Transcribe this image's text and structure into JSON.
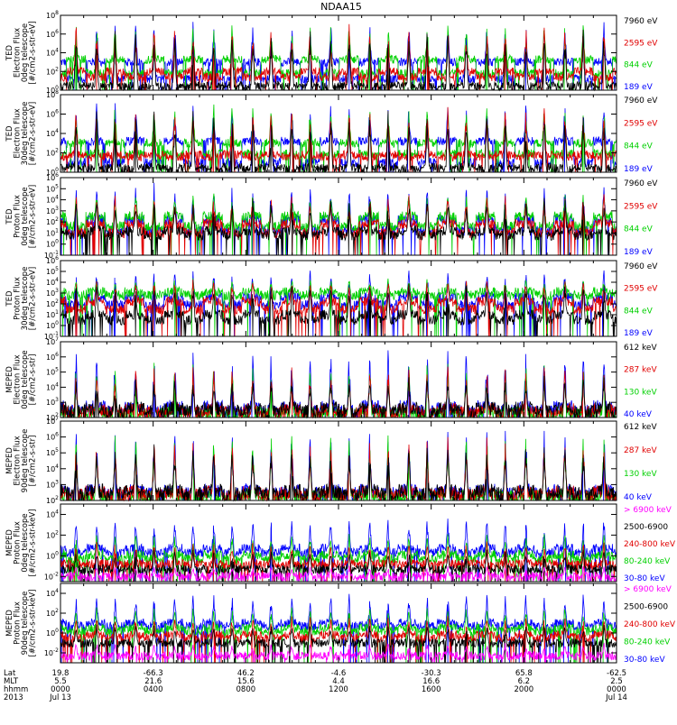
{
  "title": "NDAA15",
  "chart_data": {
    "type": "line",
    "title": "NDAA15",
    "panels": [
      {
        "id": "ted-e-0",
        "ylabel": [
          "TED",
          "Electron Flux",
          "0deg telescope",
          "[#/cm2-s-str-eV]"
        ],
        "ylog": [
          0,
          8
        ],
        "yticks": [
          {
            "label": "10^0",
            "exp": 0
          },
          {
            "label": "10^2",
            "exp": 2
          },
          {
            "label": "10^4",
            "exp": 4
          },
          {
            "label": "10^6",
            "exp": 6
          },
          {
            "label": "10^8",
            "exp": 8
          }
        ],
        "legend": [
          {
            "label": "7960 eV",
            "color": "#000000"
          },
          {
            "label": "2595 eV",
            "color": "#e00000"
          },
          {
            "label": "844 eV",
            "color": "#00d000"
          },
          {
            "label": "189 eV",
            "color": "#0000ff"
          }
        ],
        "base": [
          [
            0.5,
            2.0,
            3.3,
            1.2
          ],
          [
            0.4,
            1.4,
            1.8,
            3.0
          ]
        ],
        "peak": [
          6.2,
          6.8,
          6.9,
          7.2
        ]
      },
      {
        "id": "ted-e-30",
        "ylabel": [
          "TED",
          "Electron Flux",
          "30deg telescope",
          "[#/cm2-s-str-eV]"
        ],
        "ylog": [
          0,
          8
        ],
        "yticks": [
          {
            "label": "10^0",
            "exp": 0
          },
          {
            "label": "10^2",
            "exp": 2
          },
          {
            "label": "10^4",
            "exp": 4
          },
          {
            "label": "10^6",
            "exp": 6
          },
          {
            "label": "10^8",
            "exp": 8
          }
        ],
        "legend": [
          {
            "label": "7960 eV",
            "color": "#000000"
          },
          {
            "label": "2595 eV",
            "color": "#e00000"
          },
          {
            "label": "844 eV",
            "color": "#00d000"
          },
          {
            "label": "189 eV",
            "color": "#0000ff"
          }
        ],
        "base": [
          [
            0.5,
            1.8,
            3.0,
            1.0
          ],
          [
            0.4,
            1.6,
            1.9,
            3.2
          ]
        ],
        "peak": [
          6.0,
          6.5,
          6.8,
          7.0
        ]
      },
      {
        "id": "ted-p-0",
        "ylabel": [
          "TED",
          "Proton Flux",
          "0deg telescope",
          "[#/cm2-s-str-eV]"
        ],
        "ylog": [
          -1,
          6
        ],
        "yticks": [
          {
            "label": "10^-1",
            "exp": -1
          },
          {
            "label": "10^0",
            "exp": 0
          },
          {
            "label": "10^1",
            "exp": 1
          },
          {
            "label": "10^2",
            "exp": 2
          },
          {
            "label": "10^3",
            "exp": 3
          },
          {
            "label": "10^4",
            "exp": 4
          },
          {
            "label": "10^5",
            "exp": 5
          },
          {
            "label": "10^6",
            "exp": 6
          }
        ],
        "legend": [
          {
            "label": "7960 eV",
            "color": "#000000"
          },
          {
            "label": "2595 eV",
            "color": "#e00000"
          },
          {
            "label": "844 eV",
            "color": "#00d000"
          },
          {
            "label": "189 eV",
            "color": "#0000ff"
          }
        ],
        "base": [
          [
            0.8,
            1.0,
            1.6,
            1.2
          ],
          [
            1.2,
            1.8,
            2.5,
            2.2
          ]
        ],
        "peak": [
          4.0,
          4.5,
          4.6,
          5.3
        ]
      },
      {
        "id": "ted-p-30",
        "ylabel": [
          "TED",
          "Proton Flux",
          "30deg telescope",
          "[#/cm2-s-str-eV]"
        ],
        "ylog": [
          -1,
          6
        ],
        "yticks": [
          {
            "label": "10^-1",
            "exp": -1
          },
          {
            "label": "10^0",
            "exp": 0
          },
          {
            "label": "10^1",
            "exp": 1
          },
          {
            "label": "10^2",
            "exp": 2
          },
          {
            "label": "10^3",
            "exp": 3
          },
          {
            "label": "10^4",
            "exp": 4
          },
          {
            "label": "10^5",
            "exp": 5
          },
          {
            "label": "10^6",
            "exp": 6
          }
        ],
        "legend": [
          {
            "label": "7960 eV",
            "color": "#000000"
          },
          {
            "label": "2595 eV",
            "color": "#e00000"
          },
          {
            "label": "844 eV",
            "color": "#00d000"
          },
          {
            "label": "189 eV",
            "color": "#0000ff"
          }
        ],
        "base": [
          [
            0.5,
            1.5,
            2.8,
            1.9
          ],
          [
            1.0,
            2.2,
            3.1,
            2.6
          ]
        ],
        "peak": [
          3.8,
          4.2,
          4.3,
          5.0
        ]
      },
      {
        "id": "meped-e-0",
        "ylabel": [
          "MEPED",
          "Electron Flux",
          "0deg telescope",
          "[#/cm2-s-str]"
        ],
        "ylog": [
          2,
          7
        ],
        "yticks": [
          {
            "label": "10^2",
            "exp": 2
          },
          {
            "label": "10^3",
            "exp": 3
          },
          {
            "label": "10^4",
            "exp": 4
          },
          {
            "label": "10^5",
            "exp": 5
          },
          {
            "label": "10^6",
            "exp": 6
          },
          {
            "label": "10^7",
            "exp": 7
          }
        ],
        "legend": [
          {
            "label": "612 keV",
            "color": "#000000"
          },
          {
            "label": "287 keV",
            "color": "#e00000"
          },
          {
            "label": "130 keV",
            "color": "#00d000"
          },
          {
            "label": "40 keV",
            "color": "#0000ff"
          }
        ],
        "base": [
          [
            2.4,
            2.3,
            2.2,
            2.4
          ],
          [
            2.6,
            2.5,
            2.3,
            2.7
          ]
        ],
        "peak": [
          4.6,
          5.2,
          5.5,
          6.3
        ]
      },
      {
        "id": "meped-e-90",
        "ylabel": [
          "MEPED",
          "Electron Flux",
          "90deg telescope",
          "[#/cm2-s-str]"
        ],
        "ylog": [
          2,
          7
        ],
        "yticks": [
          {
            "label": "10^2",
            "exp": 2
          },
          {
            "label": "10^3",
            "exp": 3
          },
          {
            "label": "10^4",
            "exp": 4
          },
          {
            "label": "10^5",
            "exp": 5
          },
          {
            "label": "10^6",
            "exp": 6
          },
          {
            "label": "10^7",
            "exp": 7
          }
        ],
        "legend": [
          {
            "label": "612 keV",
            "color": "#000000"
          },
          {
            "label": "287 keV",
            "color": "#e00000"
          },
          {
            "label": "130 keV",
            "color": "#00d000"
          },
          {
            "label": "40 keV",
            "color": "#0000ff"
          }
        ],
        "base": [
          [
            2.4,
            2.3,
            2.2,
            2.4
          ],
          [
            2.6,
            2.5,
            2.3,
            2.6
          ]
        ],
        "peak": [
          5.3,
          5.8,
          6.0,
          6.4
        ]
      },
      {
        "id": "meped-p-0",
        "ylabel": [
          "MEPED",
          "Proton Flux",
          "0deg telescope",
          "[#/cm2-s-str-keV]"
        ],
        "ylog": [
          -2.5,
          5
        ],
        "yticks": [
          {
            "label": "10^-2",
            "exp": -2
          },
          {
            "label": "10^0",
            "exp": 0
          },
          {
            "label": "10^2",
            "exp": 2
          },
          {
            "label": "10^4",
            "exp": 4
          }
        ],
        "legend": [
          {
            "label": "> 6900 keV",
            "color": "#ff00ff"
          },
          {
            "label": "2500-6900",
            "color": "#000000"
          },
          {
            "label": "240-800 keV",
            "color": "#e00000"
          },
          {
            "label": "80-240 keV",
            "color": "#00d000"
          },
          {
            "label": "30-80 keV",
            "color": "#0000ff"
          }
        ],
        "base": [
          [
            -2.0,
            -1.3,
            -0.8,
            -0.3,
            0.3
          ],
          [
            -2.0,
            -1.3,
            -0.8,
            0.1,
            0.7
          ]
        ],
        "peak": [
          -1.0,
          0.5,
          1.3,
          2.0,
          3.5
        ]
      },
      {
        "id": "meped-p-90",
        "ylabel": [
          "MEPED",
          "Proton Flux",
          "90deg telescope",
          "[#/cm2-s-str-keV]"
        ],
        "ylog": [
          -3,
          5
        ],
        "yticks": [
          {
            "label": "10^-2",
            "exp": -2
          },
          {
            "label": "10^0",
            "exp": 0
          },
          {
            "label": "10^2",
            "exp": 2
          },
          {
            "label": "10^4",
            "exp": 4
          }
        ],
        "legend": [
          {
            "label": "> 6900 keV",
            "color": "#ff00ff"
          },
          {
            "label": "2500-6900",
            "color": "#000000"
          },
          {
            "label": "240-800 keV",
            "color": "#e00000"
          },
          {
            "label": "80-240 keV",
            "color": "#00d000"
          },
          {
            "label": "30-80 keV",
            "color": "#0000ff"
          }
        ],
        "base": [
          [
            -2.3,
            -1.0,
            -0.5,
            0.2,
            0.7
          ],
          [
            -2.3,
            -1.0,
            -0.2,
            0.5,
            1.0
          ]
        ],
        "peak": [
          -1.0,
          0.8,
          1.6,
          2.5,
          3.8
        ]
      }
    ],
    "xaxis": {
      "rows": [
        "Lat",
        "MLT",
        "hhmm",
        "2013"
      ],
      "ticks": [
        {
          "hour": 0,
          "lat": "19.8",
          "mlt": "5.5",
          "hhmm": "0000",
          "date": "Jul 13"
        },
        {
          "hour": 4,
          "lat": "-66.3",
          "mlt": "21.6",
          "hhmm": "0400",
          "date": ""
        },
        {
          "hour": 8,
          "lat": "46.2",
          "mlt": "15.6",
          "hhmm": "0800",
          "date": ""
        },
        {
          "hour": 12,
          "lat": "-4.6",
          "mlt": "4.4",
          "hhmm": "1200",
          "date": ""
        },
        {
          "hour": 16,
          "lat": "-30.3",
          "mlt": "16.6",
          "hhmm": "1600",
          "date": ""
        },
        {
          "hour": 20,
          "lat": "65.8",
          "mlt": "6.2",
          "hhmm": "2000",
          "date": ""
        },
        {
          "hour": 24,
          "lat": "-62.5",
          "mlt": "2.5",
          "hhmm": "0000",
          "date": "Jul 14"
        }
      ],
      "range_hours": [
        0,
        24
      ],
      "orbit_period_hours": 1.684,
      "orbit_phase_hours": 0.25
    },
    "grid": false
  }
}
